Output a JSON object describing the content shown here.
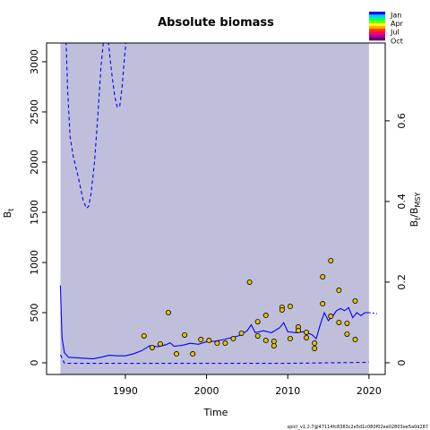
{
  "chart_data": {
    "type": "line",
    "title": "Absolute biomass",
    "xlabel": "Time",
    "ylabel": {
      "main": "B",
      "sub": "t"
    },
    "y2label": {
      "main": "B",
      "sub": "t",
      "mid": "/B",
      "sub2": "MSY"
    },
    "footer": "spict_v1.2.7@47114fc8383c2e5d1c080f02ee02803ee5a0d287",
    "xlim": [
      1980.3,
      2022
    ],
    "ylim": [
      -116,
      3187
    ],
    "y2lim": [
      -0.029,
      0.793
    ],
    "xticks": [
      1990,
      2000,
      2010,
      2020
    ],
    "yticks": [
      0,
      500,
      1000,
      1500,
      2000,
      2500,
      3000
    ],
    "y2ticks": [
      0,
      0.2,
      0.4,
      0.6
    ],
    "ci_region": {
      "x": [
        1982,
        2020
      ],
      "color": "#bfbfdb"
    },
    "season_legend": {
      "labels": [
        "Jan",
        "Apr",
        "Jul",
        "Oct"
      ],
      "colors": [
        "#0000ff",
        "#00ccff",
        "#00ff66",
        "#66ff00",
        "#ffff00",
        "#ffaa00",
        "#ff3300",
        "#ff0066",
        "#aa00aa",
        "#660066"
      ]
    },
    "series": [
      {
        "name": "Estimate",
        "color": "#0000ff",
        "style": "solid",
        "x": [
          1982,
          1982.2,
          1982.5,
          1983,
          1985,
          1986,
          1987,
          1988,
          1989,
          1990,
          1991,
          1992,
          1993,
          1994,
          1995,
          1995.5,
          1996,
          1997,
          1998,
          1999,
          2000,
          2001,
          2002,
          2003,
          2004,
          2005,
          2005.5,
          2006,
          2007,
          2008,
          2009,
          2009.5,
          2010,
          2011,
          2012,
          2013,
          2013.5,
          2014,
          2014.5,
          2015,
          2015.5,
          2016,
          2016.5,
          2017,
          2017.5,
          2018,
          2018.5,
          2019,
          2019.5,
          2020
        ],
        "values": [
          770,
          250,
          100,
          55,
          45,
          40,
          55,
          75,
          70,
          70,
          90,
          120,
          170,
          160,
          180,
          200,
          165,
          175,
          195,
          185,
          210,
          215,
          230,
          250,
          270,
          320,
          380,
          300,
          320,
          300,
          350,
          400,
          310,
          300,
          310,
          280,
          240,
          380,
          500,
          420,
          460,
          520,
          540,
          520,
          550,
          450,
          500,
          470,
          500,
          500
        ]
      },
      {
        "name": "Forecast",
        "color": "#0000ff",
        "style": "dotted",
        "x": [
          2020,
          2020.5,
          2021
        ],
        "values": [
          500,
          495,
          490
        ]
      },
      {
        "name": "Lower CI",
        "color": "#0000ff",
        "style": "dashed",
        "x": [
          1982,
          1982.5,
          1985,
          1990,
          2000,
          2010,
          2015,
          2020
        ],
        "values": [
          80,
          -5,
          -5,
          -5,
          -5,
          -5,
          0,
          5
        ]
      },
      {
        "name": "Upper CI",
        "color": "#0000ff",
        "style": "dashed",
        "x": [
          1982.7,
          1982.9,
          1983.2,
          1983.6,
          1984.2,
          1984.8,
          1985.2,
          1985.5,
          1985.8,
          1986.2,
          1986.6,
          1987,
          1987.3,
          null,
          1987.9,
          1988.3,
          1988.7,
          1989,
          1989.3,
          1989.6,
          1989.9,
          1990.1
        ],
        "values": [
          3200,
          2700,
          2250,
          2050,
          1850,
          1620,
          1540,
          1560,
          1700,
          2000,
          2450,
          2950,
          3200,
          null,
          3200,
          2900,
          2650,
          2550,
          2550,
          2750,
          3050,
          3200
        ]
      },
      {
        "name": "Observations",
        "color": "#e6c300",
        "style": "points",
        "x": [
          1992.3,
          1993.3,
          1994.3,
          1995.3,
          1996.3,
          1997.3,
          1998.3,
          1999.3,
          2000.3,
          2001.3,
          2002.3,
          2003.3,
          2004.3,
          2005.3,
          2006.3,
          2006.3,
          2007.3,
          2007.3,
          2008.3,
          2008.3,
          2009.3,
          2009.3,
          2010.3,
          2010.3,
          2011.3,
          2011.3,
          2012.3,
          2012.3,
          2013.3,
          2013.3,
          2014.3,
          2014.3,
          2015.3,
          2015.3,
          2016.3,
          2016.3,
          2017.3,
          2017.3,
          2018.3,
          2018.3
        ],
        "values": [
          268,
          152,
          188,
          500,
          89,
          277,
          89,
          232,
          223,
          196,
          196,
          241,
          295,
          804,
          268,
          410,
          473,
          223,
          214,
          170,
          554,
          527,
          562,
          241,
          357,
          321,
          304,
          250,
          196,
          143,
          857,
          589,
          1018,
          464,
          723,
          402,
          393,
          286,
          616,
          232
        ]
      }
    ]
  }
}
